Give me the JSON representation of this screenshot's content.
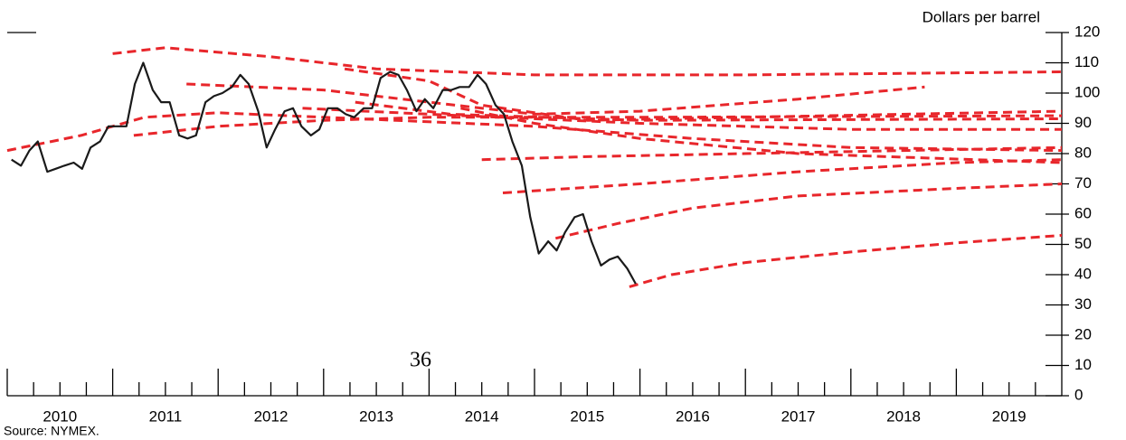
{
  "chart_data": {
    "type": "line",
    "y_label": "Dollars per barrel",
    "source": "Source: NYMEX.",
    "page_number": "36",
    "xlim": [
      2010,
      2020
    ],
    "xticks": [
      2010,
      2011,
      2012,
      2013,
      2014,
      2015,
      2016,
      2017,
      2018,
      2019
    ],
    "xminorticks": [
      2010.25,
      2010.5,
      2010.75,
      2011.25,
      2011.5,
      2011.75,
      2012.25,
      2012.5,
      2012.75,
      2013.25,
      2013.5,
      2013.75,
      2014.25,
      2014.5,
      2014.75,
      2015.25,
      2015.5,
      2015.75,
      2016.25,
      2016.5,
      2016.75,
      2017.25,
      2017.5,
      2017.75,
      2018.25,
      2018.5,
      2018.75,
      2019.25,
      2019.5,
      2019.75
    ],
    "ylim": [
      0,
      120
    ],
    "yticks": [
      0,
      10,
      20,
      30,
      40,
      50,
      60,
      70,
      80,
      90,
      100,
      110,
      120
    ],
    "series": [
      {
        "color": "#1a1a1a",
        "dashed": false,
        "x": [
          2010.04,
          2010.13,
          2010.21,
          2010.29,
          2010.38,
          2010.46,
          2010.54,
          2010.63,
          2010.71,
          2010.79,
          2010.88,
          2010.96,
          2011.04,
          2011.13,
          2011.21,
          2011.29,
          2011.38,
          2011.46,
          2011.54,
          2011.63,
          2011.71,
          2011.79,
          2011.88,
          2011.96,
          2012.04,
          2012.13,
          2012.21,
          2012.29,
          2012.38,
          2012.46,
          2012.54,
          2012.63,
          2012.71,
          2012.79,
          2012.88,
          2012.96,
          2013.04,
          2013.13,
          2013.21,
          2013.29,
          2013.38,
          2013.46,
          2013.54,
          2013.63,
          2013.71,
          2013.79,
          2013.88,
          2013.96,
          2014.04,
          2014.13,
          2014.21,
          2014.29,
          2014.38,
          2014.46,
          2014.54,
          2014.63,
          2014.71,
          2014.79,
          2014.88,
          2014.96,
          2015.04,
          2015.13,
          2015.21,
          2015.29,
          2015.38,
          2015.46,
          2015.54,
          2015.63,
          2015.71,
          2015.79,
          2015.88,
          2015.96
        ],
        "values": [
          78,
          76,
          81,
          84,
          74,
          75,
          76,
          77,
          75,
          82,
          84,
          89,
          89,
          89,
          103,
          110,
          101,
          97,
          97,
          86,
          85,
          86,
          97,
          99,
          100,
          102,
          106,
          103,
          94,
          82,
          88,
          94,
          95,
          89,
          86,
          88,
          95,
          95,
          93,
          92,
          95,
          95,
          105,
          107,
          106,
          101,
          94,
          98,
          95,
          101,
          101,
          102,
          102,
          106,
          103,
          96,
          93,
          84,
          76,
          59,
          47,
          51,
          48,
          54,
          59,
          60,
          51,
          43,
          45,
          46,
          42,
          37
        ]
      },
      {
        "color": "#e8262b",
        "dashed": true,
        "x": [
          2011.0,
          2011.5,
          2012.5,
          2013.5,
          2015.0,
          2017.0,
          2020.0
        ],
        "values": [
          113,
          115,
          112,
          108,
          106,
          106,
          107
        ]
      },
      {
        "color": "#e8262b",
        "dashed": true,
        "x": [
          2011.7,
          2013.0,
          2014.0,
          2015.0,
          2016.0,
          2017.5,
          2018.7
        ],
        "values": [
          103,
          101,
          97,
          93,
          94,
          98,
          102
        ]
      },
      {
        "color": "#e8262b",
        "dashed": true,
        "x": [
          2010.0,
          2010.7,
          2011.3,
          2012.0,
          2013.0,
          2015.0,
          2016.5,
          2018.0,
          2020.0
        ],
        "values": [
          81,
          86,
          92,
          93.5,
          92,
          89,
          85,
          82,
          81
        ]
      },
      {
        "color": "#e8262b",
        "dashed": true,
        "x": [
          2011.2,
          2012.0,
          2013.0,
          2014.0,
          2016.0,
          2020.0
        ],
        "values": [
          86,
          89,
          91,
          92,
          92,
          92.5
        ]
      },
      {
        "color": "#e8262b",
        "dashed": true,
        "x": [
          2013.2,
          2014.0,
          2014.5,
          2015.5,
          2017.0,
          2020.0
        ],
        "values": [
          108,
          104,
          96,
          91,
          92,
          94
        ]
      },
      {
        "color": "#e8262b",
        "dashed": true,
        "x": [
          2012.8,
          2014.0,
          2016.0,
          2018.0,
          2020.0
        ],
        "values": [
          95,
          93,
          90,
          88,
          88
        ]
      },
      {
        "color": "#e8262b",
        "dashed": true,
        "x": [
          2014.3,
          2015.0,
          2016.0,
          2017.5,
          2020.0
        ],
        "values": [
          95,
          90,
          85,
          80,
          77
        ]
      },
      {
        "color": "#e8262b",
        "dashed": true,
        "x": [
          2013.3,
          2014.2,
          2016.0,
          2020.0
        ],
        "values": [
          97,
          93,
          91,
          91.5
        ]
      },
      {
        "color": "#e8262b",
        "dashed": true,
        "x": [
          2014.5,
          2015.5,
          2017.0,
          2018.5,
          2020.0
        ],
        "values": [
          78,
          79,
          80,
          81,
          82
        ]
      },
      {
        "color": "#e8262b",
        "dashed": true,
        "x": [
          2014.7,
          2016.0,
          2017.5,
          2019.0,
          2020.0
        ],
        "values": [
          67,
          70,
          74,
          77,
          78
        ]
      },
      {
        "color": "#e8262b",
        "dashed": true,
        "x": [
          2015.2,
          2015.8,
          2016.5,
          2017.5,
          2019.0,
          2020.0
        ],
        "values": [
          52,
          57,
          62,
          66,
          68.5,
          70
        ]
      },
      {
        "color": "#e8262b",
        "dashed": true,
        "x": [
          2015.9,
          2016.3,
          2017.0,
          2018.0,
          2019.0,
          2020.0
        ],
        "values": [
          36,
          40,
          44,
          47.5,
          50.5,
          53
        ]
      }
    ]
  }
}
